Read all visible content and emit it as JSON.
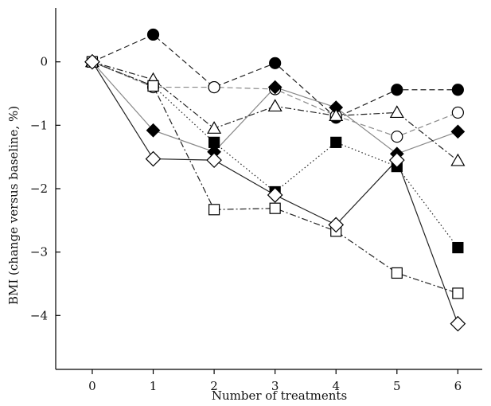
{
  "chart_data": {
    "type": "line",
    "xlabel": "Number of treatments",
    "ylabel": "BMI (change versus baseline, %)",
    "x": [
      0,
      1,
      2,
      3,
      4,
      5,
      6
    ],
    "xlim": [
      -0.6,
      6.4
    ],
    "ylim": [
      -4.85,
      0.85
    ],
    "yticks": [
      0,
      -1,
      -2,
      -3,
      -4
    ],
    "grid": false,
    "legend": "none",
    "series": [
      {
        "marker": "filled-circle",
        "line_style": "dashed",
        "line_color": "#222222",
        "values": [
          0,
          0.43,
          -0.4,
          -0.02,
          -0.88,
          -0.44,
          -0.44
        ]
      },
      {
        "marker": "open-circle",
        "line_style": "dashed",
        "line_color": "#888888",
        "values": [
          0,
          -0.4,
          -0.4,
          -0.43,
          -0.85,
          -1.18,
          -0.8
        ]
      },
      {
        "marker": "filled-diamond",
        "line_style": "solid",
        "line_color": "#888888",
        "values": [
          0,
          -1.08,
          -1.42,
          -0.4,
          -0.72,
          -1.45,
          -1.1
        ]
      },
      {
        "marker": "open-triangle",
        "line_style": "dash-dot",
        "line_color": "#222222",
        "values": [
          0,
          -0.28,
          -1.05,
          -0.7,
          -0.85,
          -0.8,
          -1.56
        ]
      },
      {
        "marker": "filled-square",
        "line_style": "dotted",
        "line_color": "#222222",
        "values": [
          0,
          -0.38,
          -1.27,
          -2.05,
          -1.27,
          -1.65,
          -2.93
        ]
      },
      {
        "marker": "open-square",
        "line_style": "dash-dot",
        "line_color": "#222222",
        "values": [
          0,
          -0.38,
          -2.33,
          -2.31,
          -2.67,
          -3.33,
          -3.65
        ]
      },
      {
        "marker": "open-diamond",
        "line_style": "solid",
        "line_color": "#222222",
        "values": [
          0,
          -1.53,
          -1.55,
          -2.1,
          -2.57,
          -1.55,
          -4.13
        ]
      }
    ]
  }
}
